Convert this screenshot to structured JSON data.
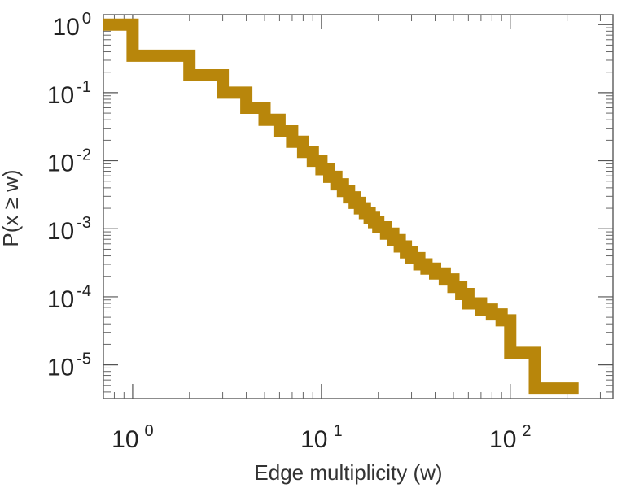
{
  "chart_data": {
    "type": "line",
    "step": true,
    "title": "",
    "xlabel": "Edge multiplicity (w)",
    "ylabel": "P(x ≥ w)",
    "x_scale": "log",
    "y_scale": "log",
    "xlim": [
      0.7,
      350
    ],
    "ylim": [
      3.2e-06,
      1.4
    ],
    "x_ticks": [
      {
        "value": 1,
        "base": "10",
        "exp": "0"
      },
      {
        "value": 10,
        "base": "10",
        "exp": "1"
      },
      {
        "value": 100,
        "base": "10",
        "exp": "2"
      }
    ],
    "y_ticks": [
      {
        "value": 1,
        "base": "10",
        "exp": "0"
      },
      {
        "value": 0.1,
        "base": "10",
        "exp": "-1"
      },
      {
        "value": 0.01,
        "base": "10",
        "exp": "-2"
      },
      {
        "value": 0.001,
        "base": "10",
        "exp": "-3"
      },
      {
        "value": 0.0001,
        "base": "10",
        "exp": "-4"
      },
      {
        "value": 1e-05,
        "base": "10",
        "exp": "-5"
      }
    ],
    "grid": false,
    "legend": "none",
    "series": [
      {
        "color": "#b8860b",
        "x": [
          0.7,
          1,
          2,
          3,
          4,
          5,
          6,
          7,
          8,
          9,
          10,
          11,
          12,
          13,
          14,
          15,
          16,
          17,
          18,
          19,
          20,
          22,
          24,
          26,
          28,
          30,
          33,
          36,
          40,
          45,
          50,
          55,
          60,
          70,
          80,
          90,
          100,
          135,
          230
        ],
        "y": [
          1.0,
          0.35,
          0.18,
          0.1,
          0.06,
          0.04,
          0.027,
          0.019,
          0.0135,
          0.01,
          0.0075,
          0.0058,
          0.0045,
          0.0036,
          0.0029,
          0.0024,
          0.002,
          0.0017,
          0.00145,
          0.00125,
          0.00105,
          0.00085,
          0.00068,
          0.00055,
          0.00045,
          0.00037,
          0.0003,
          0.00026,
          0.00022,
          0.00018,
          0.00014,
          0.00011,
          8e-05,
          6.5e-05,
          5.5e-05,
          4.5e-05,
          1.5e-05,
          4.5e-06,
          4.5e-06
        ]
      }
    ]
  }
}
